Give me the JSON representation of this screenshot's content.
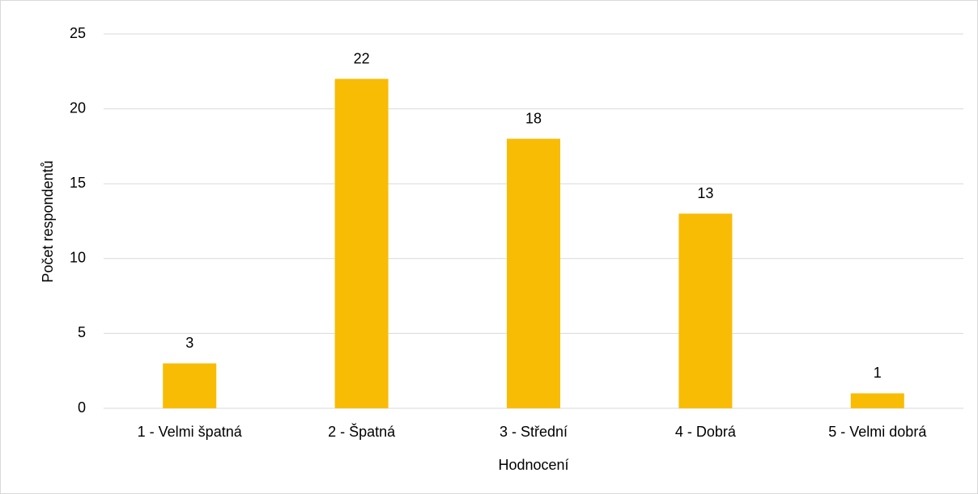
{
  "chart_data": {
    "type": "bar",
    "categories": [
      "1 - Velmi špatná",
      "2 - Špatná",
      "3 - Střední",
      "4 - Dobrá",
      "5 - Velmi dobrá"
    ],
    "values": [
      3,
      22,
      18,
      13,
      1
    ],
    "color": "#f9bc05",
    "xlabel": "Hodnocení",
    "ylabel": "Počet respondentů",
    "ylim": [
      0,
      25
    ],
    "yticks": [
      0,
      5,
      10,
      15,
      20,
      25
    ],
    "grid": true
  }
}
